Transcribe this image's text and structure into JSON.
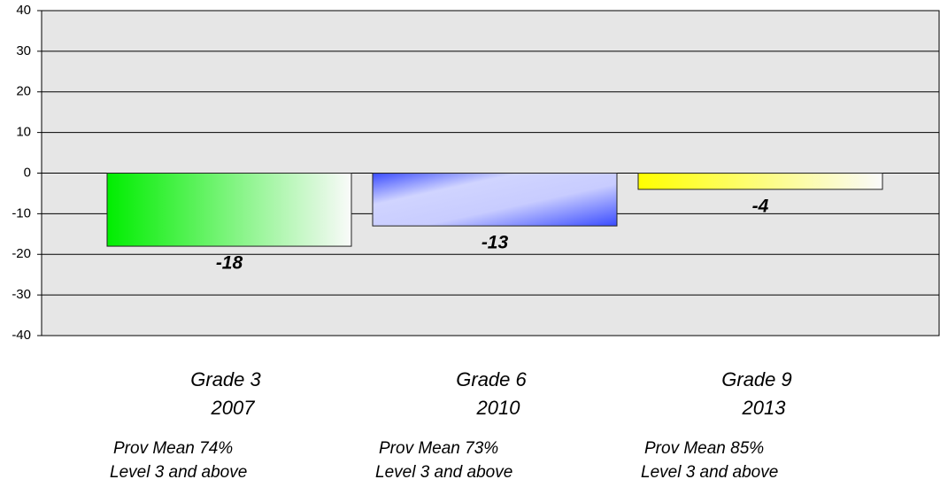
{
  "chart_data": {
    "type": "bar",
    "categories": [
      [
        "Grade 3",
        "2007"
      ],
      [
        "Grade 6",
        "2010"
      ],
      [
        "Grade 9",
        "2013"
      ]
    ],
    "annotations": [
      [
        "Prov Mean  74%",
        "Level 3 and above"
      ],
      [
        "Prov Mean 73%",
        "Level 3 and above"
      ],
      [
        "Prov Mean 85%",
        "Level 3 and above"
      ]
    ],
    "values": [
      -18,
      -13,
      -4
    ],
    "colors": [
      "#00ee00",
      "#3a4cff",
      "#ffff00"
    ],
    "ylim": [
      -40,
      40
    ],
    "yticks": [
      -40,
      -30,
      -20,
      -10,
      0,
      10,
      20,
      30,
      40
    ],
    "grid": true
  }
}
